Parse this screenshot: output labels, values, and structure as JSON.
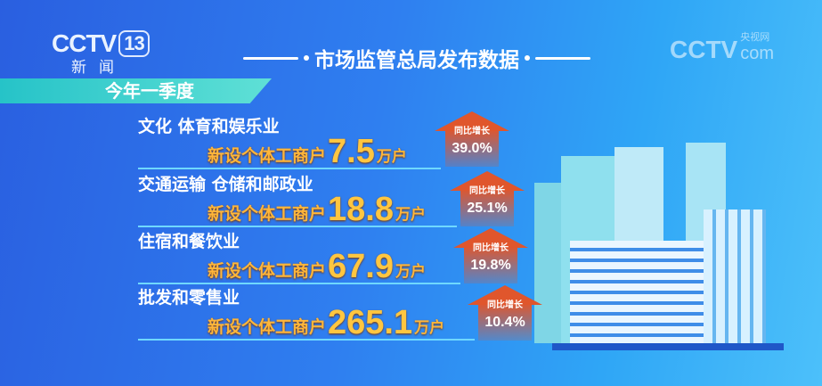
{
  "header": {
    "channel_logo": "CCTV",
    "channel_number": "13",
    "channel_name": "新闻",
    "title": "市场监管总局发布数据",
    "watermark": "CCTV",
    "watermark_sub": "央视网",
    "watermark_com": "com"
  },
  "period": "今年一季度",
  "colors": {
    "accent_orange": "#ffb63a",
    "arrow_red": "#e0562c",
    "band_teal": "#26c3c8"
  },
  "rows": [
    {
      "category": "文化 体育和娱乐业",
      "label": "新设个体工商户",
      "value": "7.5",
      "unit": "万户",
      "growth_label": "同比增长",
      "growth": "39.0%"
    },
    {
      "category": "交通运输 仓储和邮政业",
      "label": "新设个体工商户",
      "value": "18.8",
      "unit": "万户",
      "growth_label": "同比增长",
      "growth": "25.1%"
    },
    {
      "category": "住宿和餐饮业",
      "label": "新设个体工商户",
      "value": "67.9",
      "unit": "万户",
      "growth_label": "同比增长",
      "growth": "19.8%"
    },
    {
      "category": "批发和零售业",
      "label": "新设个体工商户",
      "value": "265.1",
      "unit": "万户",
      "growth_label": "同比增长",
      "growth": "10.4%"
    }
  ]
}
